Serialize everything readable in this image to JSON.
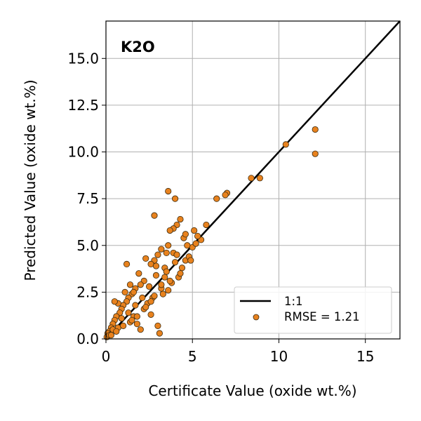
{
  "chart_data": {
    "type": "scatter",
    "title": "K2O",
    "xlabel": "Certificate Value (oxide wt.%)",
    "ylabel": "Predicted Value (oxide wt.%)",
    "xlim": [
      0,
      17
    ],
    "ylim": [
      0,
      17
    ],
    "xticks": [
      "0",
      "5",
      "10",
      "15"
    ],
    "xtick_values": [
      0,
      5,
      10,
      15
    ],
    "yticks": [
      "0.0",
      "2.5",
      "5.0",
      "7.5",
      "10.0",
      "12.5",
      "15.0"
    ],
    "ytick_values": [
      0,
      2.5,
      5,
      7.5,
      10,
      12.5,
      15
    ],
    "grid": true,
    "legend_position": "lower-right",
    "colors": {
      "points": "#e8821e",
      "point_edge": "#3a2a10",
      "one_to_one": "#000000",
      "grid": "#b0b0b0"
    },
    "series": [
      {
        "name": "1:1",
        "kind": "line",
        "x": [
          0,
          17
        ],
        "y": [
          0,
          17
        ]
      },
      {
        "name": "RMSE = 1.21",
        "kind": "points",
        "x": [
          12.1,
          12.1,
          10.4,
          8.9,
          8.4,
          7.0,
          6.9,
          6.4,
          4.0,
          3.6,
          2.8,
          5.8,
          5.5,
          4.3,
          4.1,
          3.9,
          3.7,
          3.5,
          3.2,
          3.0,
          2.8,
          2.6,
          2.3,
          2.2,
          2.0,
          1.9,
          1.7,
          1.5,
          1.3,
          1.2,
          1.0,
          0.9,
          0.8,
          0.6,
          0.5,
          0.4,
          0.3,
          0.2,
          0.1,
          0.05,
          1.2,
          1.4,
          1.6,
          1.8,
          2.0,
          2.4,
          2.6,
          3.0,
          3.1,
          3.3,
          3.6,
          3.8,
          4.2,
          4.4,
          4.6,
          4.8,
          5.0,
          5.2,
          4.5,
          3.9,
          3.4,
          2.9,
          2.5,
          2.1,
          1.7,
          1.3,
          0.9,
          0.7,
          0.4,
          0.2,
          2.7,
          3.5,
          4.1,
          4.7,
          5.3,
          4.9,
          4.3,
          3.7,
          3.2,
          2.6,
          2.2,
          1.8,
          1.4,
          1.0,
          0.6,
          0.3,
          1.1,
          1.6,
          2.3,
          3.2,
          3.4,
          2.8,
          0.7,
          0.5,
          1.5,
          2.9,
          4.0,
          3.6,
          4.6,
          5.1
        ],
        "y": [
          11.2,
          9.9,
          10.4,
          8.6,
          8.6,
          7.8,
          7.7,
          7.5,
          7.5,
          7.9,
          6.6,
          6.1,
          5.3,
          6.4,
          6.1,
          5.9,
          5.8,
          4.6,
          4.8,
          4.5,
          4.2,
          4.0,
          4.3,
          3.1,
          2.9,
          3.5,
          2.7,
          2.4,
          2.2,
          2.0,
          1.8,
          1.6,
          1.4,
          1.2,
          1.0,
          0.8,
          0.6,
          0.4,
          0.3,
          0.1,
          4.0,
          2.9,
          1.2,
          0.8,
          0.5,
          1.9,
          1.3,
          0.7,
          0.3,
          2.4,
          2.6,
          3.0,
          3.3,
          3.8,
          4.2,
          4.4,
          4.9,
          5.1,
          5.4,
          4.6,
          3.8,
          3.4,
          2.8,
          2.2,
          1.8,
          1.4,
          1.1,
          0.6,
          0.5,
          0.2,
          2.2,
          3.6,
          4.5,
          5.0,
          5.5,
          4.2,
          3.5,
          3.1,
          2.7,
          2.0,
          1.6,
          1.2,
          0.9,
          0.7,
          0.4,
          0.2,
          2.5,
          2.5,
          1.7,
          2.9,
          3.3,
          2.3,
          1.9,
          2.0,
          1.0,
          3.9,
          4.1,
          5.0,
          5.6,
          5.8
        ]
      }
    ]
  }
}
